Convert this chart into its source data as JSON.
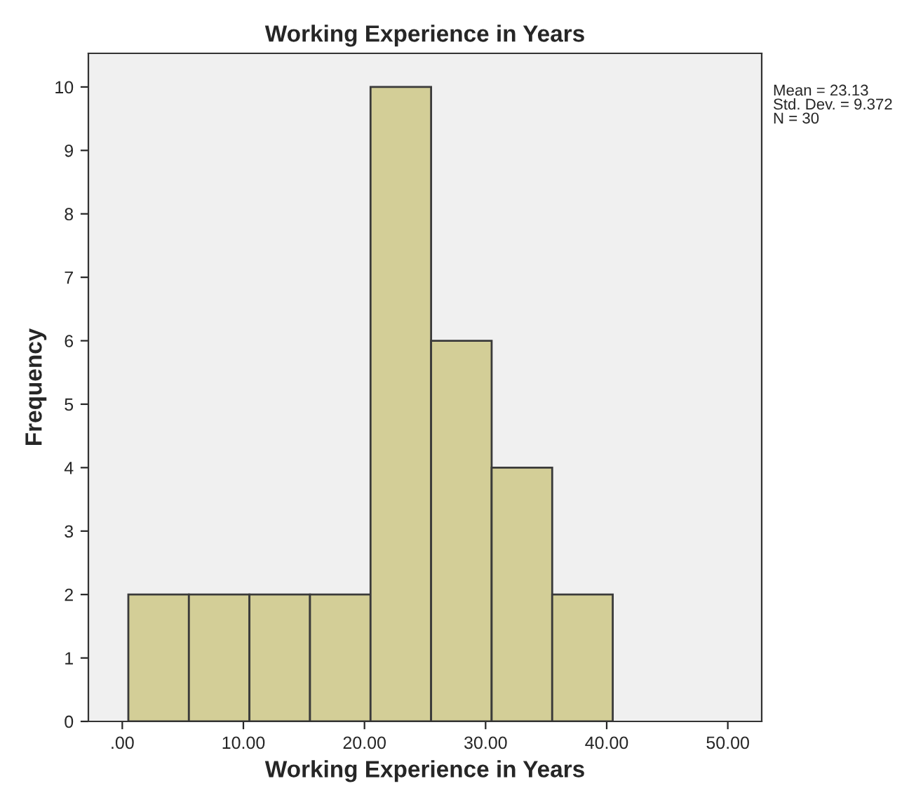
{
  "chart_data": {
    "type": "histogram",
    "title": "Working Experience in Years",
    "xlabel": "Working Experience in Years",
    "ylabel": "Frequency",
    "bins": [
      0.5,
      5.5,
      10.5,
      15.5,
      20.5,
      25.5,
      30.5,
      35.5,
      40.5
    ],
    "values": [
      2,
      2,
      2,
      2,
      10,
      6,
      4,
      2
    ],
    "color": "#d3ce97",
    "xlim": [
      -2.8,
      52.8
    ],
    "xticks": [
      {
        "value": 0,
        "label": ".00"
      },
      {
        "value": 10,
        "label": "10.00"
      },
      {
        "value": 20,
        "label": "20.00"
      },
      {
        "value": 30,
        "label": "30.00"
      },
      {
        "value": 40,
        "label": "40.00"
      },
      {
        "value": 50,
        "label": "50.00"
      }
    ],
    "ylim": [
      0,
      10.53
    ],
    "yticks": [
      0,
      1,
      2,
      3,
      4,
      5,
      6,
      7,
      8,
      9,
      10
    ],
    "grid": false,
    "annotations": [
      "Mean = 23.13\nStd. Dev. = 9.372\nN = 30"
    ]
  }
}
